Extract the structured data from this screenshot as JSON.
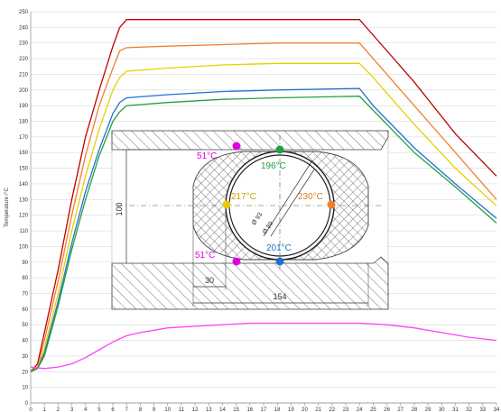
{
  "chart_data": {
    "type": "line",
    "ylabel": "Temperature /°C",
    "xlabel": "",
    "xlim": [
      0,
      34
    ],
    "ylim": [
      0,
      250
    ],
    "x_ticks": [
      0,
      1,
      2,
      3,
      4,
      5,
      6,
      7,
      8,
      9,
      10,
      11,
      12,
      13,
      14,
      15,
      16,
      17,
      18,
      19,
      20,
      21,
      22,
      23,
      24,
      25,
      26,
      27,
      28,
      29,
      30,
      31,
      32,
      33,
      34
    ],
    "y_ticks": [
      0,
      10,
      20,
      30,
      40,
      50,
      60,
      70,
      80,
      90,
      100,
      110,
      120,
      130,
      140,
      150,
      160,
      170,
      180,
      190,
      200,
      210,
      220,
      230,
      240,
      250
    ],
    "grid": "horizontal",
    "series": [
      {
        "color": "#c00000",
        "points": [
          [
            0,
            20
          ],
          [
            0.5,
            25
          ],
          [
            1,
            45
          ],
          [
            2,
            85
          ],
          [
            3,
            130
          ],
          [
            4,
            170
          ],
          [
            5,
            200
          ],
          [
            6,
            228
          ],
          [
            6.5,
            240
          ],
          [
            7,
            245
          ],
          [
            8,
            245
          ],
          [
            12,
            245
          ],
          [
            18,
            245
          ],
          [
            24,
            245
          ],
          [
            25,
            235
          ],
          [
            28,
            205
          ],
          [
            31,
            172
          ],
          [
            34,
            145
          ]
        ]
      },
      {
        "color": "#f08030",
        "points": [
          [
            0,
            20
          ],
          [
            0.5,
            23
          ],
          [
            1,
            40
          ],
          [
            2,
            78
          ],
          [
            3,
            120
          ],
          [
            4,
            158
          ],
          [
            5,
            190
          ],
          [
            6,
            214
          ],
          [
            6.5,
            225
          ],
          [
            7,
            227
          ],
          [
            10,
            228
          ],
          [
            14,
            229
          ],
          [
            18,
            230
          ],
          [
            24,
            230
          ],
          [
            25,
            220
          ],
          [
            28,
            190
          ],
          [
            31,
            160
          ],
          [
            34,
            130
          ]
        ]
      },
      {
        "color": "#e8d000",
        "points": [
          [
            0,
            20
          ],
          [
            0.5,
            22
          ],
          [
            1,
            35
          ],
          [
            2,
            70
          ],
          [
            3,
            110
          ],
          [
            4,
            145
          ],
          [
            5,
            175
          ],
          [
            6,
            200
          ],
          [
            6.5,
            208
          ],
          [
            7,
            212
          ],
          [
            10,
            214
          ],
          [
            14,
            216
          ],
          [
            18,
            217
          ],
          [
            24,
            217
          ],
          [
            25,
            208
          ],
          [
            28,
            178
          ],
          [
            31,
            150
          ],
          [
            34,
            126
          ]
        ]
      },
      {
        "color": "#2070d0",
        "points": [
          [
            0,
            20
          ],
          [
            0.5,
            22
          ],
          [
            1,
            32
          ],
          [
            2,
            65
          ],
          [
            3,
            102
          ],
          [
            4,
            135
          ],
          [
            5,
            162
          ],
          [
            6,
            185
          ],
          [
            6.5,
            192
          ],
          [
            7,
            195
          ],
          [
            10,
            197
          ],
          [
            14,
            199
          ],
          [
            18,
            200
          ],
          [
            24,
            201
          ],
          [
            25,
            190
          ],
          [
            28,
            163
          ],
          [
            31,
            140
          ],
          [
            34,
            118
          ]
        ]
      },
      {
        "color": "#20a040",
        "points": [
          [
            0,
            20
          ],
          [
            0.5,
            22
          ],
          [
            1,
            30
          ],
          [
            2,
            62
          ],
          [
            3,
            98
          ],
          [
            4,
            130
          ],
          [
            5,
            158
          ],
          [
            6,
            180
          ],
          [
            6.5,
            186
          ],
          [
            7,
            190
          ],
          [
            10,
            192
          ],
          [
            14,
            194
          ],
          [
            18,
            195
          ],
          [
            24,
            196
          ],
          [
            25,
            187
          ],
          [
            28,
            160
          ],
          [
            31,
            138
          ],
          [
            34,
            115
          ]
        ]
      },
      {
        "color": "#ff40ff",
        "points": [
          [
            0,
            23
          ],
          [
            1,
            22
          ],
          [
            2,
            23
          ],
          [
            3,
            25
          ],
          [
            4,
            29
          ],
          [
            5,
            34
          ],
          [
            6,
            39
          ],
          [
            7,
            43
          ],
          [
            8,
            45
          ],
          [
            10,
            48
          ],
          [
            12,
            49
          ],
          [
            14,
            50
          ],
          [
            16,
            51
          ],
          [
            20,
            51
          ],
          [
            24,
            51
          ],
          [
            26,
            50
          ],
          [
            28,
            48
          ],
          [
            30,
            45
          ],
          [
            32,
            42
          ],
          [
            34,
            40
          ]
        ]
      }
    ]
  },
  "inset": {
    "annotations": [
      {
        "text": "51°C",
        "color": "#e000e0"
      },
      {
        "text": "196°C",
        "color": "#20a040"
      },
      {
        "text": "217°C",
        "color": "#c8a000"
      },
      {
        "text": "230°C",
        "color": "#e07a20"
      },
      {
        "text": "201°C",
        "color": "#2070d0"
      },
      {
        "text": "51°C",
        "color": "#e000e0"
      }
    ],
    "dimensions": {
      "height": "100",
      "left_offset": "30",
      "width": "154",
      "dia_outer": "Ø 93",
      "dia_inner": "Ø 89"
    }
  }
}
